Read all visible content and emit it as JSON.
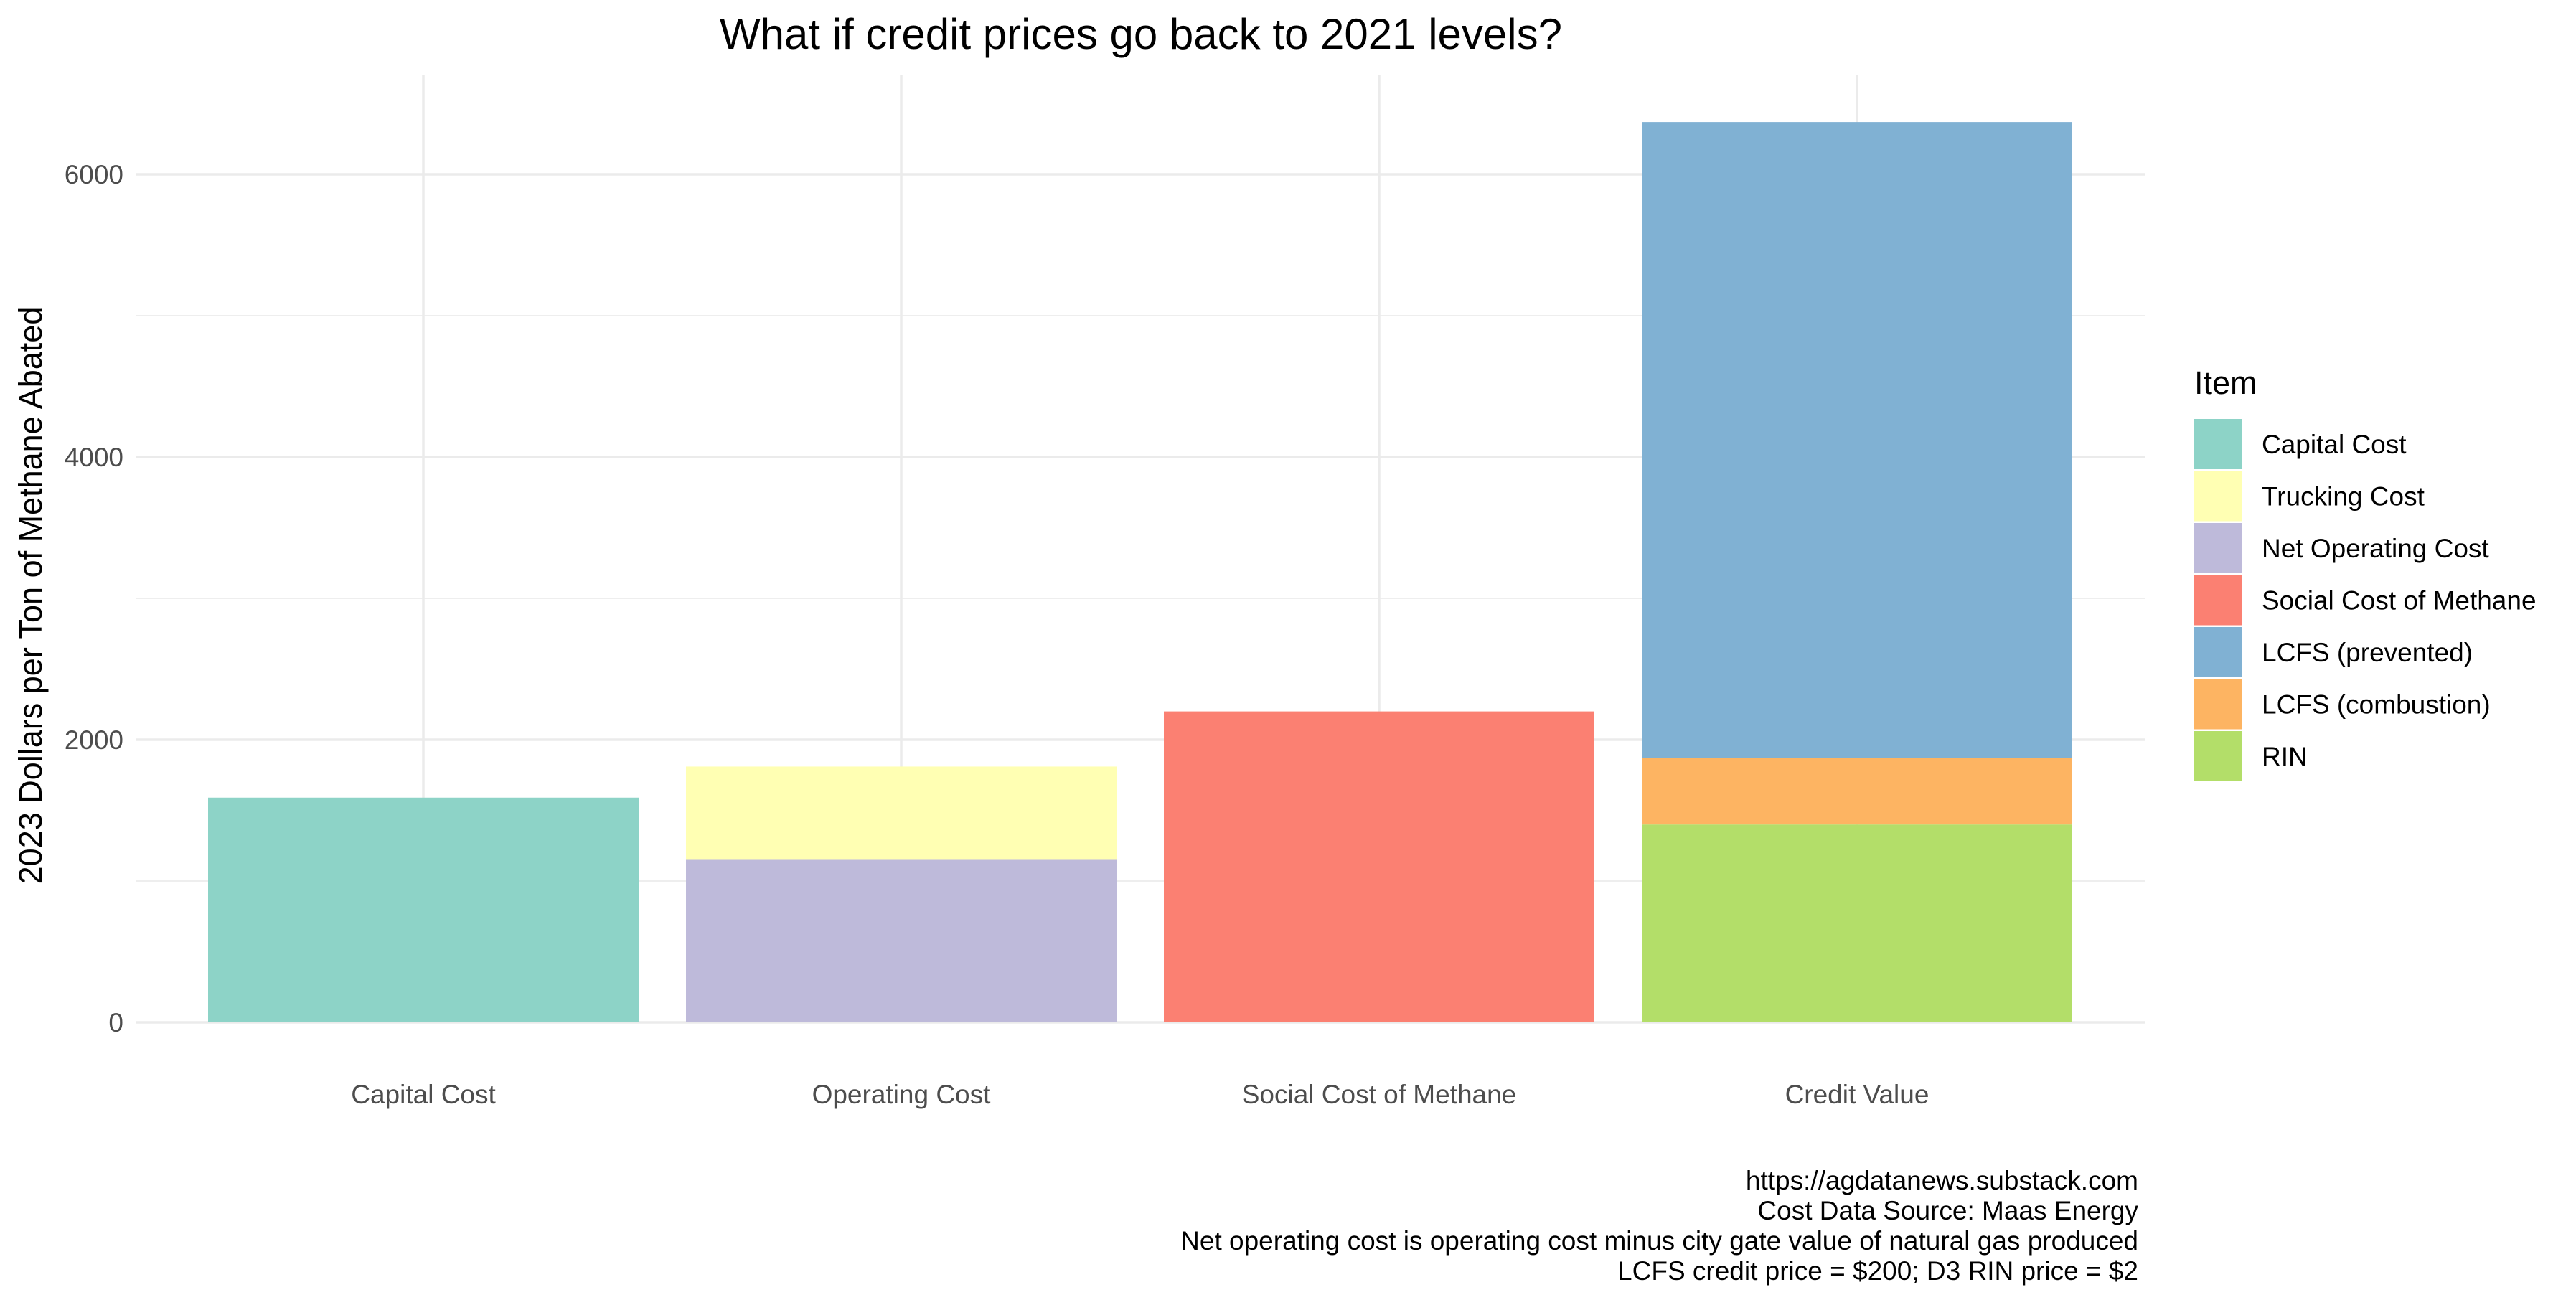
{
  "chart_data": {
    "type": "bar",
    "stacked": true,
    "title": "What if credit prices go back to 2021 levels?",
    "xlabel": "",
    "ylabel": "2023 Dollars per Ton of Methane Abated",
    "categories": [
      "Capital Cost",
      "Operating Cost",
      "Social Cost of Methane",
      "Credit Value"
    ],
    "ylim": [
      0,
      6700
    ],
    "yticks": [
      0,
      2000,
      4000,
      6000
    ],
    "grid": true,
    "legend": {
      "title": "Item",
      "placement": "right",
      "items": [
        {
          "label": "Capital Cost",
          "color": "#8DD3C7"
        },
        {
          "label": "Trucking Cost",
          "color": "#FFFFB3"
        },
        {
          "label": "Net Operating Cost",
          "color": "#BEBADA"
        },
        {
          "label": "Social Cost of Methane",
          "color": "#FB8072"
        },
        {
          "label": "LCFS (prevented)",
          "color": "#80B1D3"
        },
        {
          "label": "LCFS (combustion)",
          "color": "#FDB462"
        },
        {
          "label": "RIN",
          "color": "#B3DE69"
        }
      ]
    },
    "series": [
      {
        "name": "Capital Cost",
        "color": "#8DD3C7",
        "values": [
          1590,
          0,
          0,
          0
        ]
      },
      {
        "name": "Net Operating Cost",
        "color": "#BEBADA",
        "values": [
          0,
          1150,
          0,
          0
        ]
      },
      {
        "name": "Trucking Cost",
        "color": "#FFFFB3",
        "values": [
          0,
          660,
          0,
          0
        ]
      },
      {
        "name": "Social Cost of Methane",
        "color": "#FB8072",
        "values": [
          0,
          0,
          2200,
          0
        ]
      },
      {
        "name": "RIN",
        "color": "#B3DE69",
        "values": [
          0,
          0,
          0,
          1400
        ]
      },
      {
        "name": "LCFS (combustion)",
        "color": "#FDB462",
        "values": [
          0,
          0,
          0,
          470
        ]
      },
      {
        "name": "LCFS (prevented)",
        "color": "#80B1D3",
        "values": [
          0,
          0,
          0,
          4500
        ]
      }
    ],
    "caption": [
      "https://agdatanews.substack.com",
      "Cost Data Source: Maas Energy",
      "Net operating cost is operating cost minus city gate value of natural gas produced",
      "LCFS credit price = $200; D3 RIN price = $2"
    ]
  }
}
